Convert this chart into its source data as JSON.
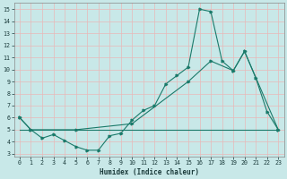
{
  "title": "",
  "xlabel": "Humidex (Indice chaleur)",
  "bg_color": "#c8e8e8",
  "grid_color": "#e8b8b8",
  "line_color": "#1a7a6a",
  "xlim": [
    -0.5,
    23.5
  ],
  "ylim": [
    2.8,
    15.5
  ],
  "yticks": [
    3,
    4,
    5,
    6,
    7,
    8,
    9,
    10,
    11,
    12,
    13,
    14,
    15
  ],
  "xticks": [
    0,
    1,
    2,
    3,
    4,
    5,
    6,
    7,
    8,
    9,
    10,
    11,
    12,
    13,
    14,
    15,
    16,
    17,
    18,
    19,
    20,
    21,
    22,
    23
  ],
  "line1_x": [
    0,
    1,
    2,
    3,
    4,
    5,
    6,
    7,
    8,
    9,
    10,
    11,
    12,
    13,
    14,
    15,
    16,
    17,
    18,
    19,
    20,
    21,
    22,
    23
  ],
  "line1_y": [
    6.0,
    5.0,
    4.3,
    4.6,
    4.1,
    3.6,
    3.3,
    3.3,
    4.5,
    4.7,
    5.8,
    6.6,
    7.0,
    8.8,
    9.5,
    10.2,
    15.0,
    14.8,
    10.7,
    9.9,
    11.5,
    9.3,
    6.5,
    5.0
  ],
  "line2_x": [
    0,
    23
  ],
  "line2_y": [
    5.0,
    5.0
  ],
  "line3_x": [
    0,
    1,
    5,
    10,
    15,
    17,
    19,
    20,
    23
  ],
  "line3_y": [
    6.0,
    5.0,
    5.0,
    5.5,
    9.0,
    10.7,
    9.9,
    11.5,
    5.0
  ]
}
